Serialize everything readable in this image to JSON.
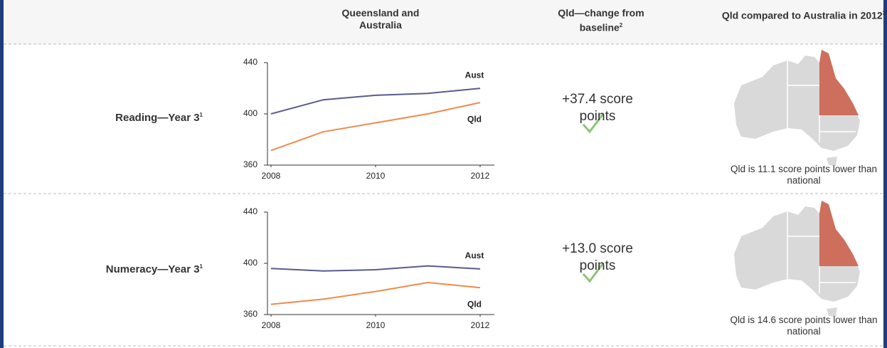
{
  "table": {
    "headers": [
      {
        "text": "Queensland and Australia"
      },
      {
        "text": "Qld—change from baseline",
        "note": "2"
      },
      {
        "text": "Qld compared to Australia in 2012",
        "note": "3"
      }
    ],
    "rows": [
      {
        "label": "Reading—Year 3",
        "note": "1",
        "chart": {
          "type": "line",
          "x": [
            2008,
            2009,
            2010,
            2011,
            2012
          ],
          "series": [
            {
              "name": "Aust",
              "color": "#5a5a8e",
              "values": [
                400,
                411,
                414.5,
                416,
                419.9
              ]
            },
            {
              "name": "Qld",
              "color": "#f08a4b",
              "values": [
                371.4,
                386,
                393,
                400,
                408.8
              ]
            }
          ],
          "xlim": [
            2008,
            2012
          ],
          "xticks": [
            2008,
            2010,
            2012
          ],
          "ylim": [
            360,
            440
          ],
          "yticks": [
            360,
            400,
            440
          ]
        },
        "change": "+37.4 score points",
        "comparison": "Qld is 11.1 score points lower than national"
      },
      {
        "label": "Numeracy—Year 3",
        "note": "1",
        "chart": {
          "type": "line",
          "x": [
            2008,
            2009,
            2010,
            2011,
            2012
          ],
          "series": [
            {
              "name": "Aust",
              "color": "#5a5a8e",
              "values": [
                396,
                394,
                395,
                398,
                395.6
              ]
            },
            {
              "name": "Qld",
              "color": "#f08a4b",
              "values": [
                368,
                372,
                378,
                385,
                381
              ]
            }
          ],
          "xlim": [
            2008,
            2012
          ],
          "xticks": [
            2008,
            2010,
            2012
          ],
          "ylim": [
            360,
            440
          ],
          "yticks": [
            360,
            400,
            440
          ]
        },
        "change": "+13.0 score points",
        "comparison": "Qld is 14.6 score points lower than national"
      }
    ]
  }
}
